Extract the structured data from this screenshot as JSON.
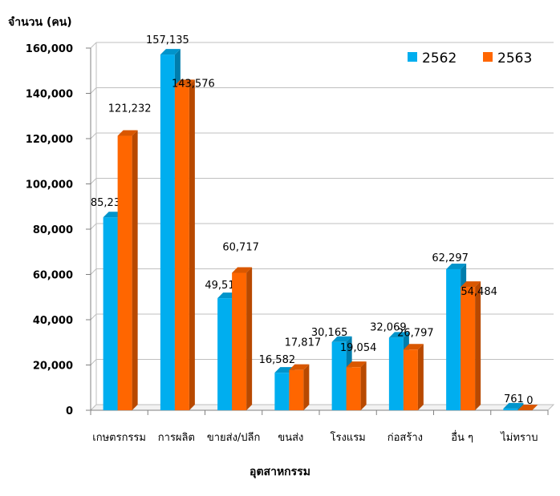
{
  "chart_data": {
    "type": "bar",
    "ylabel": "จำนวน (คน)",
    "xlabel": "อุตสาหกรรม",
    "ylim": [
      0,
      180000
    ],
    "yticks": [
      0,
      20000,
      40000,
      60000,
      80000,
      100000,
      120000,
      140000,
      160000
    ],
    "ytick_labels": [
      "0",
      "20,000",
      "40,000",
      "60,000",
      "80,000",
      "100,000",
      "120,000",
      "140,000",
      "160,000"
    ],
    "categories": [
      "เกษตรกรรม",
      "การผลิต",
      "ขายส่ง/ปลีก",
      "ขนส่ง",
      "โรงแรม",
      "ก่อสร้าง",
      "อื่น ๆ",
      "ไม่ทราบ"
    ],
    "series": [
      {
        "name": "2562",
        "values": [
          85233,
          157135,
          49514,
          16582,
          30165,
          32069,
          62297,
          761
        ],
        "labels": [
          "85,233",
          "157,135",
          "49,514",
          "16,582",
          "30,165",
          "32,069",
          "62,297",
          "761"
        ]
      },
      {
        "name": "2563",
        "values": [
          121232,
          143576,
          60717,
          17817,
          19054,
          26797,
          54484,
          0
        ],
        "labels": [
          "121,232",
          "143,576",
          "60,717",
          "17,817",
          "19,054",
          "26,797",
          "54,484",
          "0"
        ]
      }
    ],
    "legend_position": "top-right",
    "grid": true,
    "colors": {
      "2562": "#00AEEF",
      "2563": "#FF6600"
    }
  }
}
